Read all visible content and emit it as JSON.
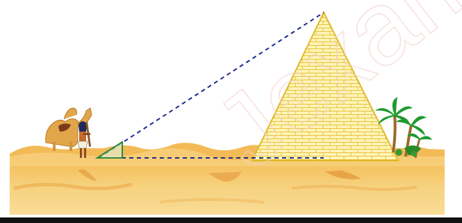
{
  "scene": {
    "description_free": true,
    "colors": {
      "sand_light": "#f6d68f",
      "sand_dark": "#e8a843",
      "sand_deep": "#d88e2d",
      "pyramid_fill": "#fff4b8",
      "pyramid_brick": "#e6c23a",
      "sight_line": "#1c2a8c",
      "set_square": "#2c8a3a",
      "palm_green": "#1f9a2e",
      "trunk": "#9a6a2a",
      "camel": "#e2a64a",
      "watermark": "#f2d3cf"
    },
    "watermark_text": "Jexams"
  }
}
